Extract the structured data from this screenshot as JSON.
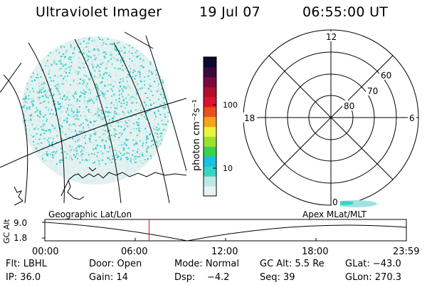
{
  "header": {
    "instrument": "Ultraviolet Imager",
    "date": "19 Jul 07",
    "time": "06:55:00 UT"
  },
  "colorbar": {
    "unit_label": "photon cm⁻²s⁻¹",
    "tick_labels": [
      "100",
      "10"
    ],
    "ticks": [
      100,
      10
    ],
    "colors": [
      "#e8f3f3",
      "#bfe6e6",
      "#37d6c2",
      "#19c1e6",
      "#39d24e",
      "#9be22e",
      "#e9f33a",
      "#f5a41b",
      "#e8501e",
      "#d9142c",
      "#b0102d",
      "#7b0a3a",
      "#3a0a3c",
      "#0d0a2c"
    ]
  },
  "map_labels": {
    "left": "Geographic Lat/Lon",
    "right": "Apex  MLat/MLT"
  },
  "polar_plot": {
    "mlt_labels": [
      "12",
      "18",
      "6",
      "0"
    ],
    "lat_labels": [
      "60",
      "70",
      "80"
    ]
  },
  "timeline": {
    "axis_label": "GC Alt",
    "y_ticks": [
      "9.0",
      "1.8"
    ],
    "x_ticks": [
      "00:00",
      "06:00",
      "12:00",
      "18:00",
      "23:59"
    ],
    "current_time_marker": "06:55",
    "line_color": "#c81414"
  },
  "status": {
    "filter": "Flt: LBHL",
    "door": "Door: Open",
    "mode": "Mode: Normal",
    "gc_alt": "GC Alt: 5.5 Re",
    "glat": "GLat: −43.0",
    "ip": "IP: 36.0",
    "gain": "Gain: 14",
    "dsp": "Dsp:    −4.2",
    "seq": "Seq: 39",
    "glon": "GLon: 270.3"
  }
}
